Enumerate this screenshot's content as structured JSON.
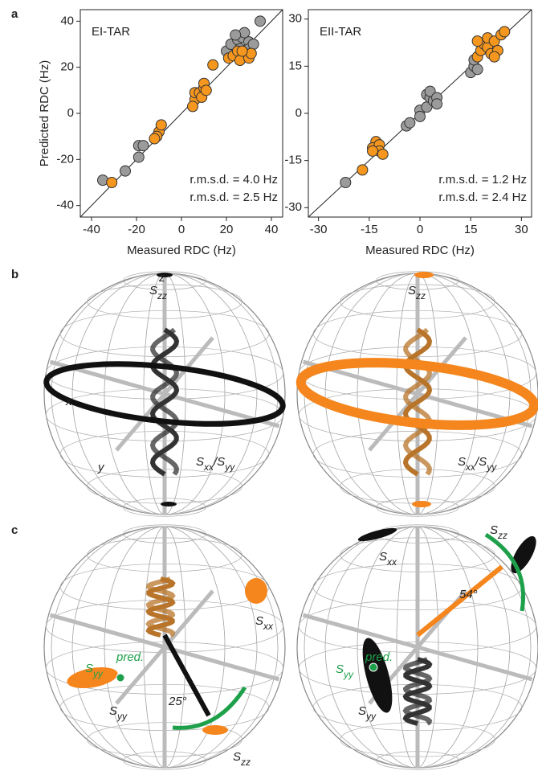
{
  "chart_data": [
    {
      "type": "scatter",
      "title": "EI-TAR",
      "xlabel": "Measured RDC (Hz)",
      "ylabel": "Predicted RDC (Hz)",
      "xlim": [
        -45,
        45
      ],
      "ylim": [
        -45,
        45
      ],
      "xticks": [
        -40,
        -20,
        0,
        20,
        40
      ],
      "yticks": [
        -40,
        -20,
        0,
        20,
        40
      ],
      "series": [
        {
          "name": "grey",
          "color": "#9b9b9b",
          "x": [
            -35,
            -25,
            -19,
            -19,
            -17,
            20,
            22,
            25,
            26,
            27,
            28,
            30,
            30,
            32,
            35,
            28,
            24
          ],
          "values": [
            -29,
            -25,
            -14,
            -19,
            -14,
            27,
            30,
            32,
            28,
            33,
            35,
            31,
            28,
            30,
            40,
            26,
            34
          ]
        },
        {
          "name": "orange",
          "color": "#f5961e",
          "x": [
            -31,
            -10,
            -9,
            -11,
            -12,
            6,
            5,
            6,
            8,
            9,
            10,
            10,
            11,
            14,
            21,
            23,
            25,
            26,
            30,
            31,
            27
          ],
          "values": [
            -30,
            -8,
            -5,
            -10,
            -11,
            6,
            3,
            9,
            9,
            7,
            11,
            13,
            10,
            21,
            24,
            25,
            27,
            23,
            24,
            26,
            27
          ]
        }
      ],
      "annotations": [
        {
          "text": "r.m.s.d. = 4.0 Hz",
          "color": "#333333"
        },
        {
          "text": "r.m.s.d. = 2.5 Hz",
          "color": "#f5961e"
        }
      ]
    },
    {
      "type": "scatter",
      "title": "EII-TAR",
      "xlabel": "Measured RDC (Hz)",
      "xlim": [
        -33,
        33
      ],
      "ylim": [
        -33,
        33
      ],
      "xticks": [
        -30,
        -15,
        0,
        15,
        30
      ],
      "yticks": [
        -30,
        -15,
        0,
        15,
        30
      ],
      "series": [
        {
          "name": "grey",
          "color": "#9b9b9b",
          "x": [
            -22,
            -4,
            -3,
            0,
            0,
            2,
            2,
            3,
            4,
            3,
            5,
            5,
            15,
            16,
            16,
            17
          ],
          "values": [
            -22,
            -4,
            -3,
            1,
            -1,
            2,
            6,
            5,
            4,
            7,
            5,
            3,
            13,
            15,
            17,
            14
          ]
        },
        {
          "name": "orange",
          "color": "#f5961e",
          "x": [
            -17,
            -13,
            -13,
            -14,
            -12,
            -12,
            -14,
            -11,
            17,
            18,
            19,
            20,
            20,
            21,
            22,
            23,
            24,
            25,
            22,
            17
          ],
          "values": [
            -18,
            -9,
            -11,
            -11,
            -10,
            -12,
            -12,
            -13,
            18,
            20,
            22,
            21,
            24,
            19,
            23,
            20,
            25,
            26,
            18,
            23
          ]
        }
      ],
      "annotations": [
        {
          "text": "r.m.s.d. = 1.2 Hz",
          "color": "#333333"
        },
        {
          "text": "r.m.s.d. = 2.4 Hz",
          "color": "#f5961e"
        }
      ]
    }
  ],
  "panel_labels": [
    "a",
    "b",
    "c"
  ],
  "sphere_labels": [
    [
      {
        "t": "S"
      },
      {
        "t": "zz",
        "sub": true
      }
    ],
    [
      {
        "t": "z"
      }
    ],
    [
      {
        "t": "x"
      }
    ],
    [
      {
        "t": "y"
      }
    ],
    [
      {
        "t": "S"
      },
      {
        "t": "xx",
        "sub": true
      },
      {
        "t": "/S"
      },
      {
        "t": "yy",
        "sub": true
      }
    ],
    [
      {
        "t": "S"
      },
      {
        "t": "zz",
        "sub": true
      }
    ],
    [
      {
        "t": "S"
      },
      {
        "t": "xx",
        "sub": true
      },
      {
        "t": "/S"
      },
      {
        "t": "yy",
        "sub": true
      }
    ],
    [
      {
        "t": "S"
      },
      {
        "t": "xx",
        "sub": true
      }
    ],
    [
      {
        "t": "pred."
      }
    ],
    [
      {
        "t": "S"
      },
      {
        "t": "yy",
        "sub": true
      }
    ],
    [
      {
        "t": "S"
      },
      {
        "t": "yy",
        "sub": true
      }
    ],
    [
      {
        "t": "25°"
      }
    ],
    [
      {
        "t": "S"
      },
      {
        "t": "zz",
        "sub": true
      }
    ],
    [
      {
        "t": "S"
      },
      {
        "t": "xx",
        "sub": true
      }
    ],
    [
      {
        "t": "S"
      },
      {
        "t": "zz",
        "sub": true
      }
    ],
    [
      {
        "t": "54°"
      }
    ],
    [
      {
        "t": "pred."
      }
    ],
    [
      {
        "t": "S"
      },
      {
        "t": "yy",
        "sub": true
      }
    ],
    [
      {
        "t": "S"
      },
      {
        "t": "yy",
        "sub": true
      }
    ]
  ]
}
